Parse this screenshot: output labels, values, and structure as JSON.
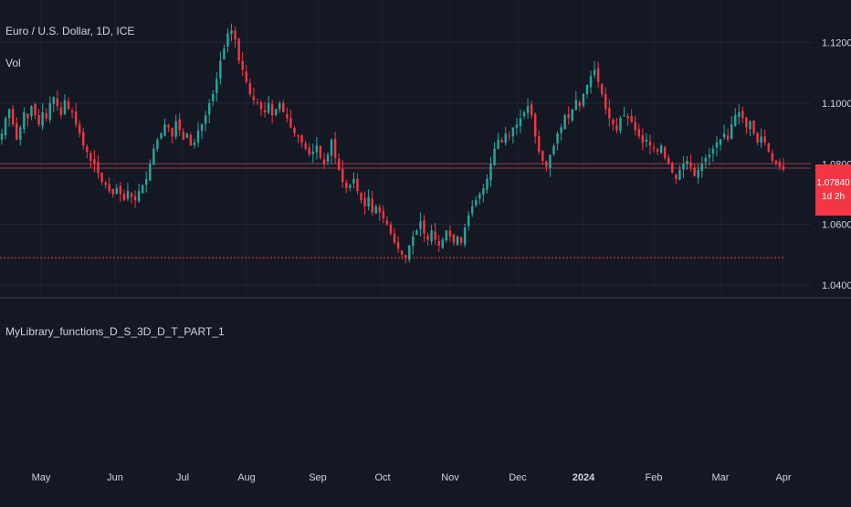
{
  "header": {
    "symbol_title": "Euro / U.S. Dollar, 1D, ICE",
    "volume_label": "Vol"
  },
  "indicator": {
    "label": "MyLibrary_functions_D_S_3D_D_T_PART_1"
  },
  "price_badge": {
    "price": "1.07840",
    "countdown": "1d 2h"
  },
  "colors": {
    "background": "#141823",
    "grid": "#232838",
    "up": "#26a69a",
    "down": "#f23645",
    "text": "#d1d4dc",
    "separator": "#2a2e39"
  },
  "chart_data": {
    "type": "candlestick",
    "y_axis": {
      "ticks": [
        "1.12000",
        "1.10000",
        "1.08000",
        "1.06000",
        "1.04000"
      ],
      "tick_values": [
        1.12,
        1.1,
        1.08,
        1.06,
        1.04
      ],
      "range": [
        1.037,
        1.128
      ]
    },
    "x_axis": {
      "ticks": [
        "May",
        "Jun",
        "Jul",
        "Aug",
        "Sep",
        "Oct",
        "Nov",
        "Dec",
        "2024",
        "Feb",
        "Mar",
        "Apr"
      ],
      "bold_ticks": [
        "2024"
      ]
    },
    "horizontal_lines": [
      {
        "style": "solid",
        "value": 1.08
      },
      {
        "style": "solid",
        "value": 1.0786
      },
      {
        "style": "dotted",
        "value": 1.049
      }
    ],
    "last_price": 1.0784,
    "series_close": [
      1.09,
      1.095,
      1.098,
      1.093,
      1.088,
      1.092,
      1.097,
      1.095,
      1.099,
      1.096,
      1.093,
      1.097,
      1.095,
      1.1,
      1.102,
      1.099,
      1.096,
      1.101,
      1.098,
      1.097,
      1.093,
      1.09,
      1.086,
      1.084,
      1.081,
      1.08,
      1.077,
      1.074,
      1.073,
      1.071,
      1.07,
      1.072,
      1.07,
      1.068,
      1.071,
      1.069,
      1.068,
      1.071,
      1.073,
      1.075,
      1.08,
      1.085,
      1.088,
      1.09,
      1.093,
      1.092,
      1.089,
      1.094,
      1.091,
      1.088,
      1.09,
      1.086,
      1.087,
      1.091,
      1.093,
      1.096,
      1.1,
      1.103,
      1.108,
      1.114,
      1.118,
      1.123,
      1.124,
      1.121,
      1.114,
      1.111,
      1.107,
      1.103,
      1.101,
      1.1,
      1.098,
      1.097,
      1.1,
      1.096,
      1.098,
      1.1,
      1.097,
      1.095,
      1.092,
      1.09,
      1.089,
      1.087,
      1.085,
      1.083,
      1.084,
      1.086,
      1.082,
      1.08,
      1.083,
      1.088,
      1.082,
      1.078,
      1.074,
      1.072,
      1.073,
      1.075,
      1.071,
      1.068,
      1.066,
      1.069,
      1.064,
      1.066,
      1.064,
      1.062,
      1.06,
      1.057,
      1.054,
      1.052,
      1.05,
      1.049,
      1.053,
      1.056,
      1.058,
      1.061,
      1.057,
      1.055,
      1.058,
      1.055,
      1.053,
      1.055,
      1.058,
      1.056,
      1.054,
      1.056,
      1.054,
      1.059,
      1.063,
      1.066,
      1.068,
      1.07,
      1.072,
      1.075,
      1.08,
      1.085,
      1.088,
      1.087,
      1.09,
      1.089,
      1.092,
      1.093,
      1.095,
      1.097,
      1.099,
      1.096,
      1.089,
      1.084,
      1.081,
      1.079,
      1.083,
      1.086,
      1.09,
      1.092,
      1.096,
      1.095,
      1.098,
      1.101,
      1.099,
      1.103,
      1.106,
      1.109,
      1.111,
      1.107,
      1.103,
      1.098,
      1.095,
      1.093,
      1.091,
      1.095,
      1.096,
      1.095,
      1.094,
      1.091,
      1.089,
      1.087,
      1.088,
      1.086,
      1.085,
      1.084,
      1.086,
      1.082,
      1.08,
      1.077,
      1.075,
      1.078,
      1.08,
      1.081,
      1.079,
      1.076,
      1.078,
      1.08,
      1.082,
      1.083,
      1.085,
      1.087,
      1.088,
      1.09,
      1.088,
      1.093,
      1.096,
      1.097,
      1.095,
      1.092,
      1.094,
      1.09,
      1.087,
      1.089,
      1.087,
      1.084,
      1.081,
      1.08,
      1.079,
      1.078
    ]
  }
}
